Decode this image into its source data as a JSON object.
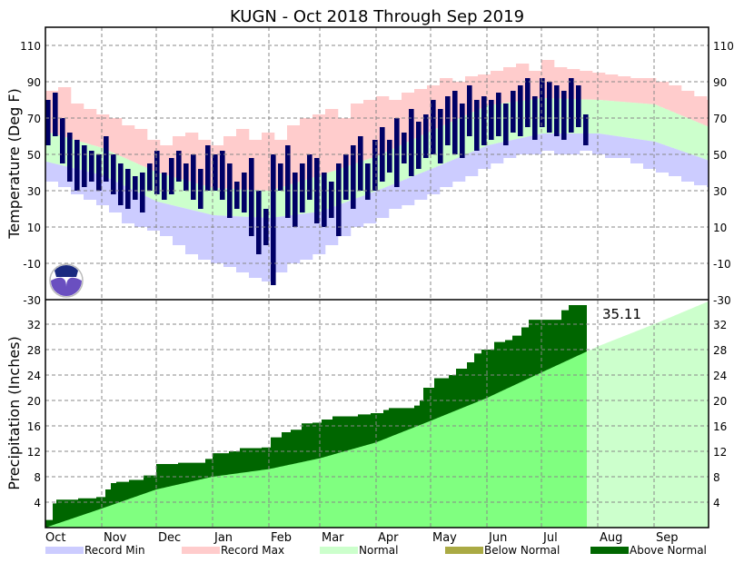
{
  "chart_data": [
    {
      "type": "bar",
      "panel": "temperature",
      "title": "KUGN - Oct 2018 Through Sep 2019",
      "ylabel": "Temperature (Deg F)",
      "ylim": [
        -30,
        120
      ],
      "yticks": [
        110,
        90,
        70,
        50,
        30,
        10,
        -10,
        -30
      ],
      "grid": true,
      "months": [
        "Oct",
        "Nov",
        "Dec",
        "Jan",
        "Feb",
        "Mar",
        "Apr",
        "May",
        "Jun",
        "Jul",
        "Aug",
        "Sep"
      ],
      "month_start_days": [
        0,
        31,
        61,
        92,
        123,
        151,
        182,
        212,
        243,
        273,
        304,
        335
      ],
      "days_in_period": 365,
      "normal_high_monthly": [
        62.5,
        53.5,
        40,
        31.5,
        30,
        38.5,
        49,
        63,
        77,
        81,
        80,
        77.5,
        65
      ],
      "normal_low_monthly": [
        46,
        38.5,
        24,
        16.5,
        15,
        18.5,
        30,
        42,
        55,
        61.5,
        61.5,
        57,
        46.5
      ],
      "record_step_days": 7,
      "record_max": [
        85,
        87,
        78,
        75,
        72,
        70,
        66,
        64,
        58,
        55,
        60,
        62,
        58,
        55,
        60,
        64,
        58,
        62,
        58,
        66,
        70,
        72,
        75,
        70,
        78,
        80,
        82,
        80,
        84,
        86,
        88,
        92,
        90,
        93,
        94,
        96,
        98,
        100,
        96,
        102,
        98,
        97,
        96,
        95,
        94,
        93,
        92,
        92,
        90,
        88,
        85,
        82,
        80
      ],
      "record_min": [
        35,
        32,
        28,
        25,
        22,
        18,
        12,
        10,
        8,
        5,
        0,
        -5,
        -8,
        -10,
        -12,
        -15,
        -18,
        -20,
        -15,
        -10,
        -8,
        -5,
        0,
        5,
        10,
        12,
        15,
        20,
        22,
        25,
        28,
        32,
        35,
        38,
        42,
        45,
        48,
        50,
        50,
        52,
        50,
        50,
        52,
        50,
        48,
        48,
        45,
        42,
        40,
        38,
        35,
        33,
        32
      ],
      "observed_step_days": 4,
      "observed_high": [
        80,
        84,
        70,
        62,
        58,
        55,
        52,
        50,
        60,
        50,
        45,
        42,
        38,
        40,
        45,
        52,
        40,
        48,
        52,
        45,
        50,
        42,
        55,
        50,
        52,
        45,
        35,
        40,
        48,
        30,
        20,
        50,
        45,
        55,
        40,
        45,
        50,
        48,
        40,
        35,
        45,
        50,
        55,
        60,
        45,
        58,
        65,
        58,
        70,
        62,
        75,
        68,
        72,
        80,
        75,
        82,
        85,
        78,
        88,
        80,
        82,
        80,
        84,
        78,
        85,
        88,
        92,
        82,
        92,
        90,
        88,
        85,
        92,
        88,
        72
      ],
      "observed_low": [
        55,
        60,
        45,
        35,
        30,
        32,
        35,
        30,
        35,
        28,
        22,
        20,
        25,
        18,
        30,
        28,
        25,
        28,
        35,
        30,
        25,
        20,
        30,
        30,
        25,
        15,
        20,
        18,
        5,
        -5,
        0,
        -22,
        30,
        15,
        10,
        18,
        25,
        12,
        10,
        15,
        5,
        25,
        20,
        30,
        25,
        30,
        35,
        40,
        32,
        45,
        38,
        42,
        48,
        50,
        45,
        55,
        50,
        48,
        60,
        52,
        55,
        58,
        60,
        55,
        62,
        60,
        65,
        58,
        65,
        62,
        60,
        58,
        62,
        65,
        55
      ],
      "colors": {
        "record_min": "#ccccff",
        "record_max": "#ffcccc",
        "normal": "#ccffcc",
        "observed": "#000066"
      }
    },
    {
      "type": "area",
      "panel": "precipitation",
      "ylabel": "Precipitation (Inches)",
      "ylim": [
        0,
        35.86
      ],
      "yticks": [
        4,
        8,
        12,
        16,
        20,
        24,
        28,
        32
      ],
      "grid": true,
      "normal_cumulative_monthly": [
        0,
        3.0,
        6.0,
        8.0,
        9.2,
        10.9,
        13.4,
        16.8,
        20.4,
        24.4,
        28.5,
        32.0,
        35.6
      ],
      "observed_cumulative_steps": [
        [
          0,
          1.2
        ],
        [
          4,
          3.8
        ],
        [
          6,
          4.4
        ],
        [
          18,
          4.6
        ],
        [
          28,
          4.8
        ],
        [
          33,
          6.0
        ],
        [
          36,
          7.0
        ],
        [
          39,
          7.2
        ],
        [
          46,
          7.5
        ],
        [
          54,
          8.2
        ],
        [
          61,
          10.0
        ],
        [
          73,
          10.2
        ],
        [
          88,
          10.8
        ],
        [
          92,
          11.7
        ],
        [
          101,
          12.0
        ],
        [
          107,
          12.5
        ],
        [
          119,
          12.6
        ],
        [
          124,
          14.2
        ],
        [
          130,
          15.0
        ],
        [
          135,
          15.4
        ],
        [
          141,
          16.4
        ],
        [
          147,
          16.5
        ],
        [
          152,
          17.0
        ],
        [
          158,
          17.5
        ],
        [
          172,
          17.8
        ],
        [
          179,
          18.0
        ],
        [
          186,
          18.5
        ],
        [
          189,
          18.8
        ],
        [
          203,
          19.2
        ],
        [
          206,
          20.0
        ],
        [
          208,
          22.0
        ],
        [
          214,
          23.5
        ],
        [
          222,
          24.0
        ],
        [
          226,
          25.0
        ],
        [
          232,
          26.0
        ],
        [
          236,
          27.4
        ],
        [
          240,
          28.0
        ],
        [
          247,
          29.2
        ],
        [
          253,
          29.5
        ],
        [
          257,
          30.2
        ],
        [
          262,
          31.5
        ],
        [
          266,
          32.7
        ],
        [
          284,
          34.2
        ],
        [
          288,
          35.0
        ],
        [
          298,
          35.11
        ]
      ],
      "last_observed_day": 298,
      "total_label": "35.11",
      "colors": {
        "above_normal": "#006600",
        "below_normal": "#aaaa44",
        "normal_observed": "#80ff80",
        "normal_future": "#ccffcc"
      }
    }
  ],
  "right_axis_top_label": "-30",
  "legend": [
    {
      "label": "Record Min",
      "color": "#ccccff"
    },
    {
      "label": "Record Max",
      "color": "#ffcccc"
    },
    {
      "label": "Normal",
      "color": "#ccffcc"
    },
    {
      "label": "Below Normal",
      "color": "#aaaa44"
    },
    {
      "label": "Above Normal",
      "color": "#006600"
    }
  ],
  "logo_text": "NOAA"
}
